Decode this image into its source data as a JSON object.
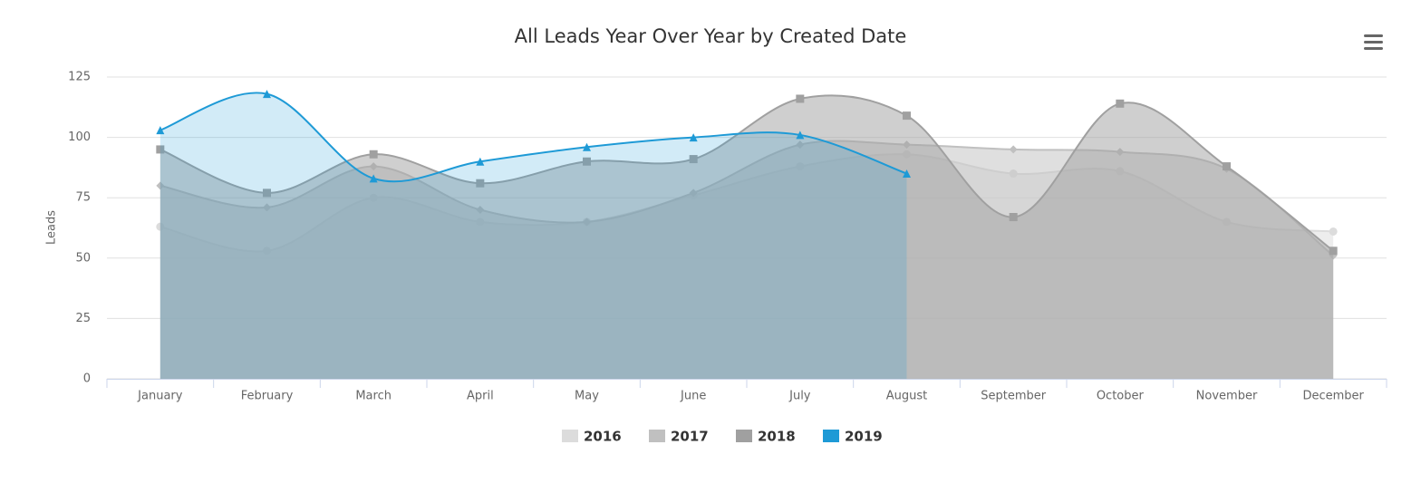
{
  "chart_data": {
    "type": "areaspline",
    "title": "All Leads Year Over Year by Created Date",
    "y_label": "Leads",
    "categories": [
      "January",
      "February",
      "March",
      "April",
      "May",
      "June",
      "July",
      "August",
      "September",
      "October",
      "November",
      "December"
    ],
    "series": [
      {
        "name": "2016",
        "color": "#dcdcdc",
        "marker": "circle",
        "values": [
          63,
          53,
          75,
          65,
          65,
          76,
          88,
          93,
          85,
          86,
          65,
          61
        ]
      },
      {
        "name": "2017",
        "color": "#c0c0c0",
        "marker": "diamond",
        "values": [
          80,
          71,
          88,
          70,
          65,
          77,
          97,
          97,
          95,
          94,
          87,
          51
        ]
      },
      {
        "name": "2018",
        "color": "#a0a0a0",
        "marker": "square",
        "values": [
          95,
          77,
          93,
          81,
          90,
          91,
          116,
          109,
          67,
          114,
          88,
          53
        ]
      },
      {
        "name": "2019",
        "color": "#1e9ad6",
        "marker": "triangle",
        "values": [
          103,
          118,
          83,
          90,
          96,
          100,
          101,
          85,
          null,
          null,
          null,
          null
        ]
      }
    ],
    "ylim": [
      0,
      125
    ],
    "yticks": [
      0,
      25,
      50,
      75,
      100,
      125
    ],
    "grid": true,
    "legend": "bottom"
  }
}
